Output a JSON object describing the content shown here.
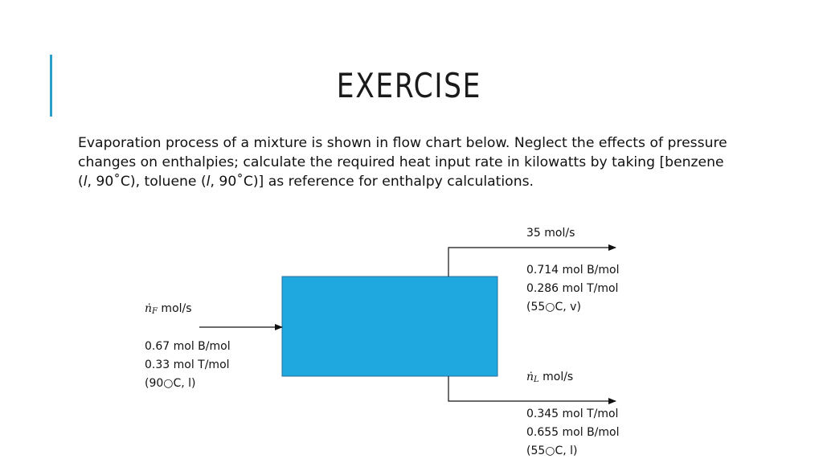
{
  "slide": {
    "title": "Exercise",
    "description_parts": [
      "Evaporation process of a mixture is shown in flow chart below. Neglect the effects of pressure changes on enthalpies; calculate the required heat input rate in kilowatts by taking [benzene (",
      "l",
      ", 90˚C), toluene (",
      "l",
      ", 90˚C)] as reference for enthalpy calculations."
    ]
  },
  "diagram": {
    "unit_color": "#1fa8e0",
    "feed": {
      "flow_symbol": "ṅ",
      "flow_subscript": "F",
      "flow_unit": " mol/s",
      "comp1": "0.67 mol B/mol",
      "comp2": "0.33 mol T/mol",
      "state": "(90○C, l)"
    },
    "vapor": {
      "flow": "35 mol/s",
      "comp1": "0.714 mol B/mol",
      "comp2": "0.286 mol T/mol",
      "state": "(55○C, v)"
    },
    "liquid": {
      "flow_symbol": "ṅ",
      "flow_subscript": "L",
      "flow_unit": " mol/s",
      "comp1": "0.345 mol T/mol",
      "comp2": "0.655 mol B/mol",
      "state": "(55○C, l)"
    }
  }
}
